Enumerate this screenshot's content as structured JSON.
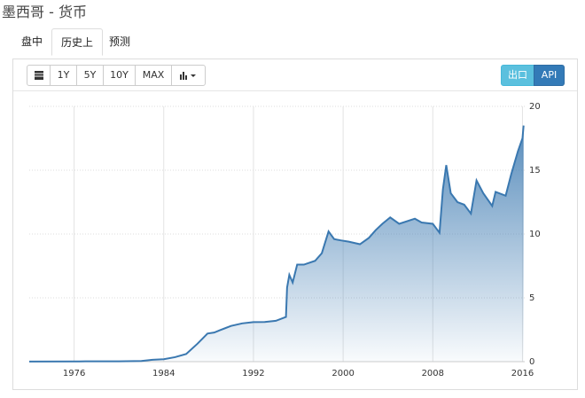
{
  "header": {
    "title": "墨西哥 - 货币"
  },
  "tabs": [
    "盘中",
    "历史上",
    "预测"
  ],
  "toolbar": {
    "ranges": [
      "1Y",
      "5Y",
      "10Y",
      "MAX"
    ],
    "export": "出口",
    "api": "API"
  },
  "chart_data": {
    "type": "area",
    "color": "#3a78b0",
    "grid": true,
    "xlim": [
      1972,
      2016.2
    ],
    "xticks": [
      1976,
      1984,
      1992,
      2000,
      2008,
      2016
    ],
    "ylim": [
      0,
      20
    ],
    "yticks": [
      0,
      5,
      10,
      15,
      20
    ],
    "x": [
      1972,
      1976.5,
      1977,
      1980,
      1982,
      1983,
      1984,
      1985,
      1986,
      1987,
      1987.9,
      1988.5,
      1989,
      1990,
      1991,
      1992,
      1993,
      1994,
      1994.9,
      1995.0,
      1995.2,
      1995.5,
      1995.9,
      1996.5,
      1997.5,
      1998.1,
      1998.7,
      1999.2,
      1999.8,
      2000.5,
      2001.5,
      2002.3,
      2002.9,
      2003.5,
      2004.2,
      2005,
      2006.4,
      2007,
      2008.0,
      2008.6,
      2008.9,
      2009.2,
      2009.6,
      2010.2,
      2010.8,
      2011.4,
      2011.9,
      2012.5,
      2013.3,
      2013.6,
      2014.5,
      2015.0,
      2015.6,
      2016.0,
      2016.1
    ],
    "values": [
      0.0125,
      0.02,
      0.023,
      0.023,
      0.05,
      0.15,
      0.19,
      0.35,
      0.6,
      1.4,
      2.2,
      2.28,
      2.46,
      2.8,
      3.0,
      3.1,
      3.11,
      3.2,
      3.5,
      5.8,
      6.8,
      6.2,
      7.6,
      7.6,
      7.9,
      8.5,
      10.2,
      9.6,
      9.5,
      9.4,
      9.2,
      9.7,
      10.3,
      10.8,
      11.3,
      10.8,
      11.2,
      10.9,
      10.8,
      10.1,
      13.5,
      15.4,
      13.2,
      12.5,
      12.3,
      11.6,
      14.2,
      13.2,
      12.2,
      13.3,
      13.0,
      14.7,
      16.5,
      17.5,
      18.5
    ]
  }
}
